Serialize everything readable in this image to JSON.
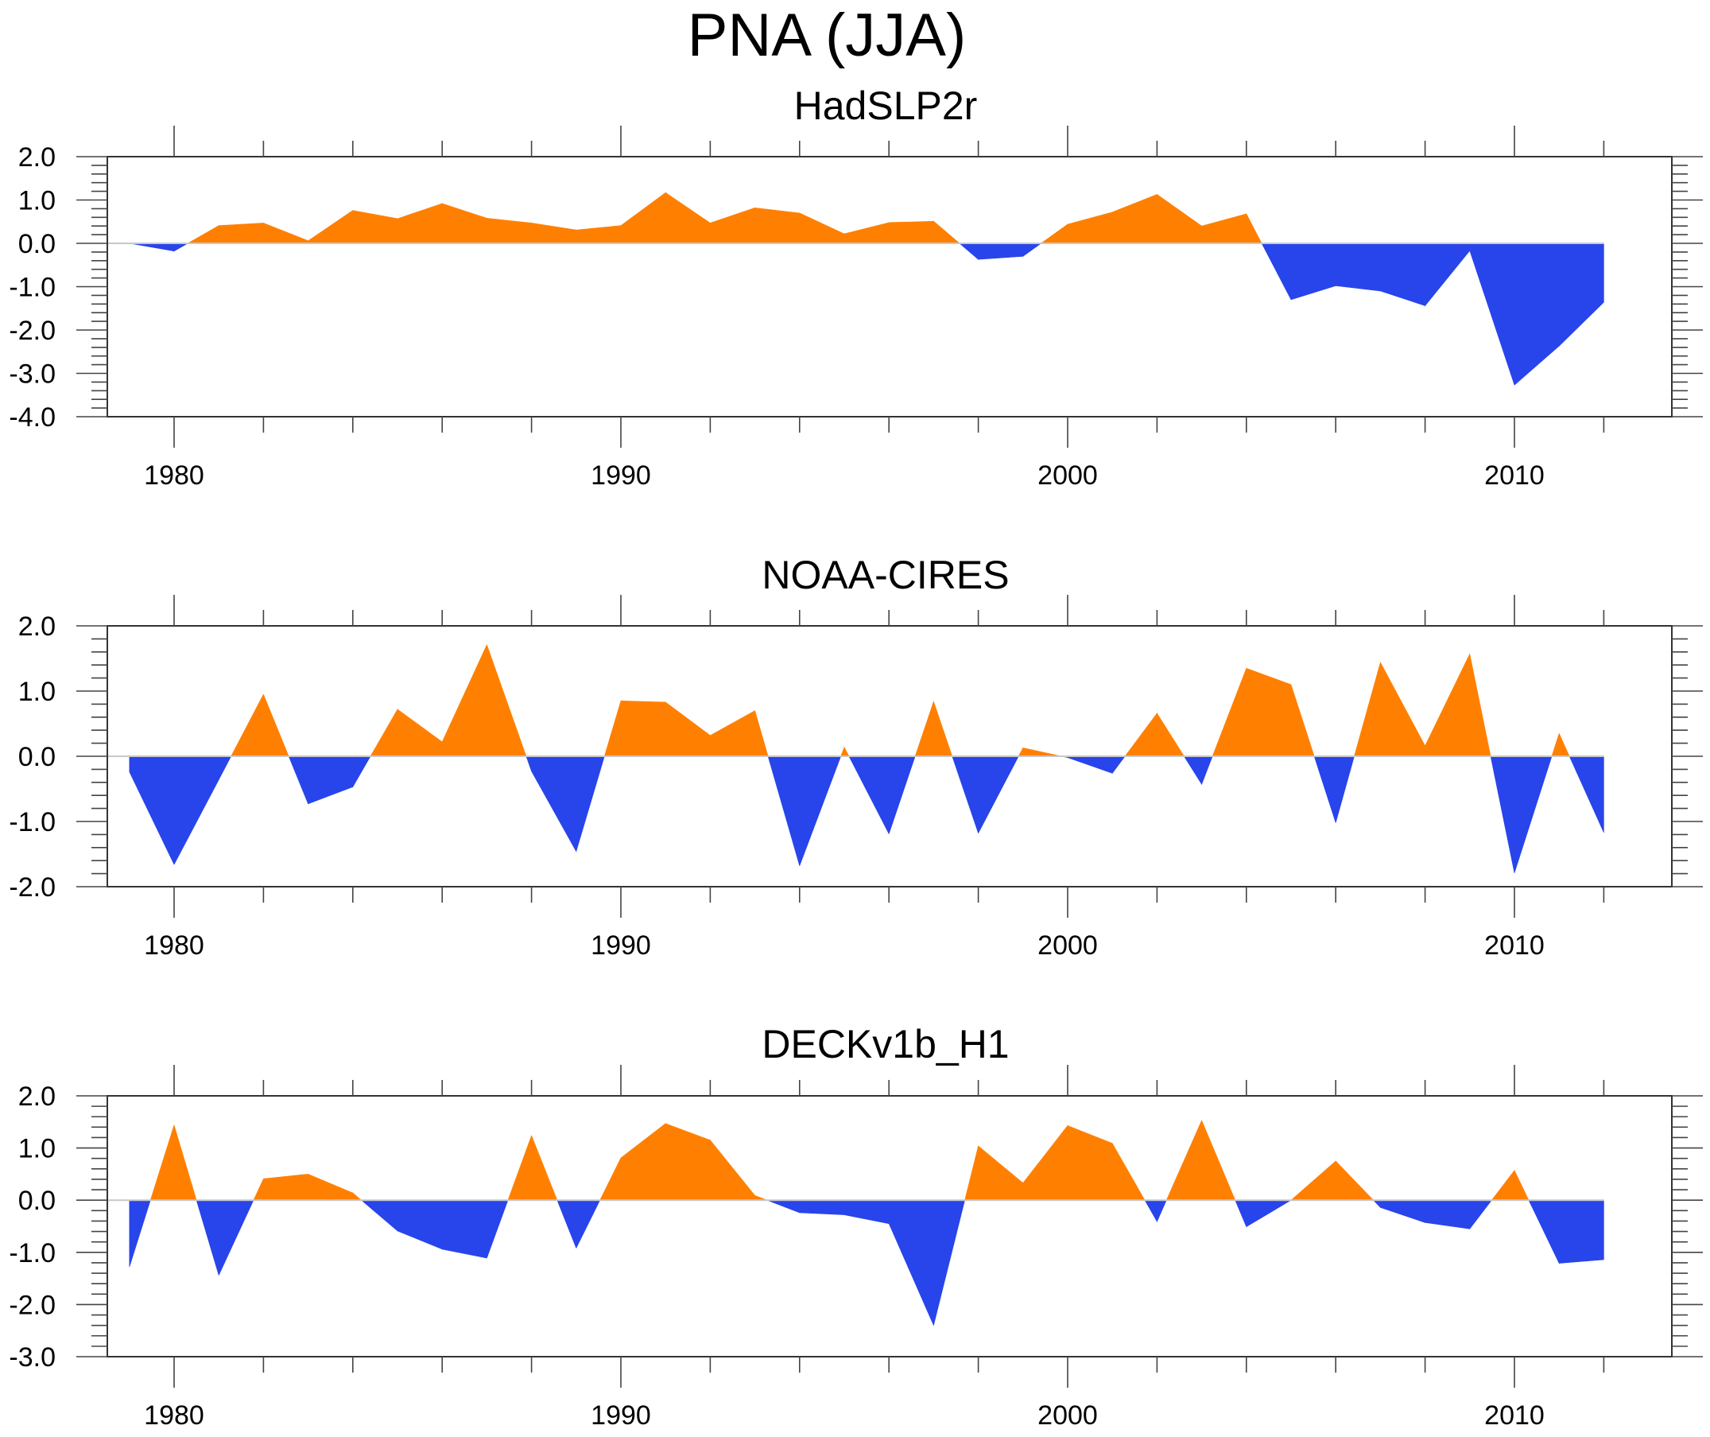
{
  "figure": {
    "title": "PNA (JJA)"
  },
  "colors": {
    "positive": "#ff8000",
    "negative": "#2844eb",
    "zero_line": "#c8c8c8",
    "axis": "#333333"
  },
  "chart_data": [
    {
      "type": "area",
      "title": "HadSLP2r",
      "xlabel": "",
      "ylabel": "",
      "xlim": [
        1978,
        2014
      ],
      "ylim": [
        -4.0,
        2.0
      ],
      "x_major_ticks": [
        1980,
        1990,
        2000,
        2010
      ],
      "x_tick_labels": [
        "1980",
        "1990",
        "2000",
        "2010"
      ],
      "y_ticks": [
        2.0,
        1.0,
        0.0,
        -1.0,
        -2.0,
        -3.0,
        -4.0
      ],
      "y_tick_labels": [
        "2.0",
        "1.0",
        "0.0",
        "-1.0",
        "-2.0",
        "-3.0",
        "-4.0"
      ],
      "fill_above_zero": "orange",
      "fill_below_zero": "blue",
      "grid": false,
      "x": [
        1979,
        1980,
        1981,
        1982,
        1983,
        1984,
        1985,
        1986,
        1987,
        1988,
        1989,
        1990,
        1991,
        1992,
        1993,
        1994,
        1995,
        1996,
        1997,
        1998,
        1999,
        2000,
        2001,
        2002,
        2003,
        2004,
        2005,
        2006,
        2007,
        2008,
        2009,
        2010,
        2011,
        2012
      ],
      "values": [
        0.0,
        -0.18,
        0.41,
        0.47,
        0.06,
        0.76,
        0.57,
        0.92,
        0.58,
        0.47,
        0.31,
        0.41,
        1.17,
        0.47,
        0.82,
        0.7,
        0.22,
        0.48,
        0.51,
        -0.37,
        -0.3,
        0.44,
        0.72,
        1.13,
        0.4,
        0.68,
        -1.3,
        -0.98,
        -1.1,
        -1.44,
        -0.17,
        -3.27,
        -2.37,
        -1.36
      ]
    },
    {
      "type": "area",
      "title": "NOAA-CIRES",
      "xlabel": "",
      "ylabel": "",
      "xlim": [
        1978,
        2014
      ],
      "ylim": [
        -2.0,
        2.0
      ],
      "x_major_ticks": [
        1980,
        1990,
        2000,
        2010
      ],
      "x_tick_labels": [
        "1980",
        "1990",
        "2000",
        "2010"
      ],
      "y_ticks": [
        2.0,
        1.0,
        0.0,
        -1.0,
        -2.0
      ],
      "y_tick_labels": [
        "2.0",
        "1.0",
        "0.0",
        "-1.0",
        "-2.0"
      ],
      "fill_above_zero": "orange",
      "fill_below_zero": "blue",
      "grid": false,
      "x": [
        1979,
        1980,
        1981,
        1982,
        1983,
        1984,
        1985,
        1986,
        1987,
        1988,
        1989,
        1990,
        1991,
        1992,
        1993,
        1994,
        1995,
        1996,
        1997,
        1998,
        1999,
        2000,
        2001,
        2002,
        2003,
        2004,
        2005,
        2006,
        2007,
        2008,
        2009,
        2010,
        2011,
        2012
      ],
      "values": [
        -0.24,
        -1.66,
        -0.36,
        0.95,
        -0.73,
        -0.47,
        0.72,
        0.22,
        1.71,
        -0.23,
        -1.46,
        0.85,
        0.83,
        0.32,
        0.7,
        -1.68,
        0.14,
        -1.19,
        0.84,
        -1.18,
        0.13,
        -0.02,
        -0.26,
        0.66,
        -0.43,
        1.35,
        1.1,
        -1.02,
        1.44,
        0.16,
        1.57,
        -1.79,
        0.35,
        -1.17
      ]
    },
    {
      "type": "area",
      "title": "DECKv1b_H1",
      "xlabel": "",
      "ylabel": "",
      "xlim": [
        1978,
        2014
      ],
      "ylim": [
        -3.0,
        2.0
      ],
      "x_major_ticks": [
        1980,
        1990,
        2000,
        2010
      ],
      "x_tick_labels": [
        "1980",
        "1990",
        "2000",
        "2010"
      ],
      "y_ticks": [
        2.0,
        1.0,
        0.0,
        -1.0,
        -2.0,
        -3.0
      ],
      "y_tick_labels": [
        "2.0",
        "1.0",
        "0.0",
        "-1.0",
        "-2.0",
        "-3.0"
      ],
      "fill_above_zero": "orange",
      "fill_below_zero": "blue",
      "grid": false,
      "x": [
        1979,
        1980,
        1981,
        1982,
        1983,
        1984,
        1985,
        1986,
        1987,
        1988,
        1989,
        1990,
        1991,
        1992,
        1993,
        1994,
        1995,
        1996,
        1997,
        1998,
        1999,
        2000,
        2001,
        2002,
        2003,
        2004,
        2005,
        2006,
        2007,
        2008,
        2009,
        2010,
        2011,
        2012
      ],
      "values": [
        -1.28,
        1.44,
        -1.44,
        0.41,
        0.5,
        0.14,
        -0.59,
        -0.94,
        -1.11,
        1.24,
        -0.92,
        0.81,
        1.47,
        1.15,
        0.09,
        -0.24,
        -0.28,
        -0.45,
        -2.4,
        1.04,
        0.33,
        1.43,
        1.09,
        -0.41,
        1.53,
        -0.51,
        0.0,
        0.75,
        -0.14,
        -0.43,
        -0.55,
        0.57,
        -1.21,
        -1.14
      ]
    }
  ]
}
